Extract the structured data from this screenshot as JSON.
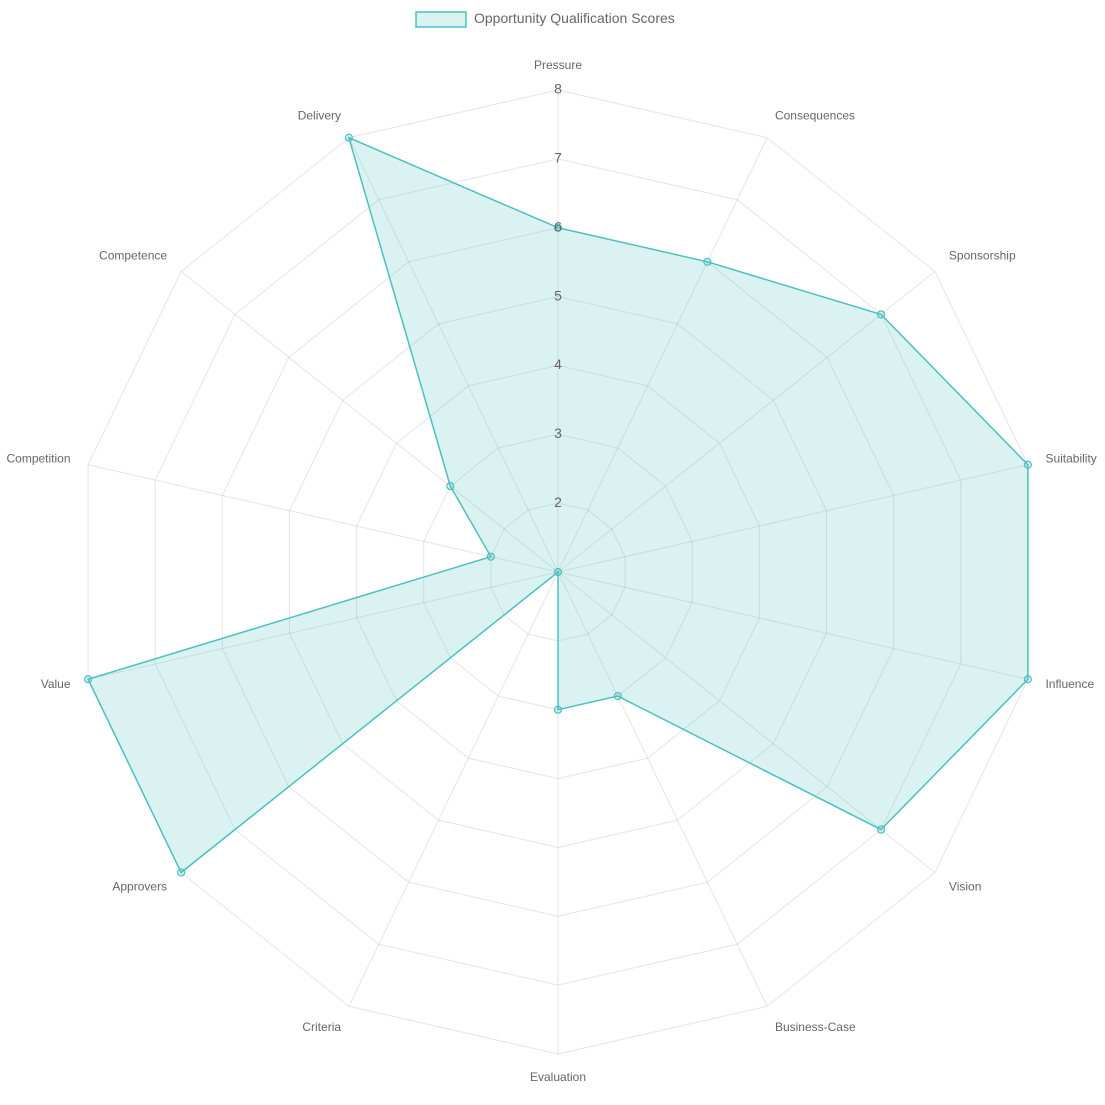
{
  "chart_data": {
    "type": "radar",
    "categories": [
      "Pressure",
      "Consequences",
      "Sponsorship",
      "Suitability",
      "Influence",
      "Vision",
      "Business-Case",
      "Evaluation",
      "Criteria",
      "Approvers",
      "Value",
      "Competition",
      "Competence",
      "Delivery"
    ],
    "series": [
      {
        "name": "Opportunity Qualification Scores",
        "color": "#4bc0c0",
        "values": [
          6,
          6,
          7,
          8,
          8,
          7,
          3,
          3,
          1,
          8,
          8,
          2,
          3,
          8
        ]
      }
    ],
    "ylim": [
      1,
      8
    ],
    "yticks": [
      2,
      3,
      4,
      5,
      6,
      7,
      8
    ],
    "grid": true,
    "legend": "top"
  }
}
